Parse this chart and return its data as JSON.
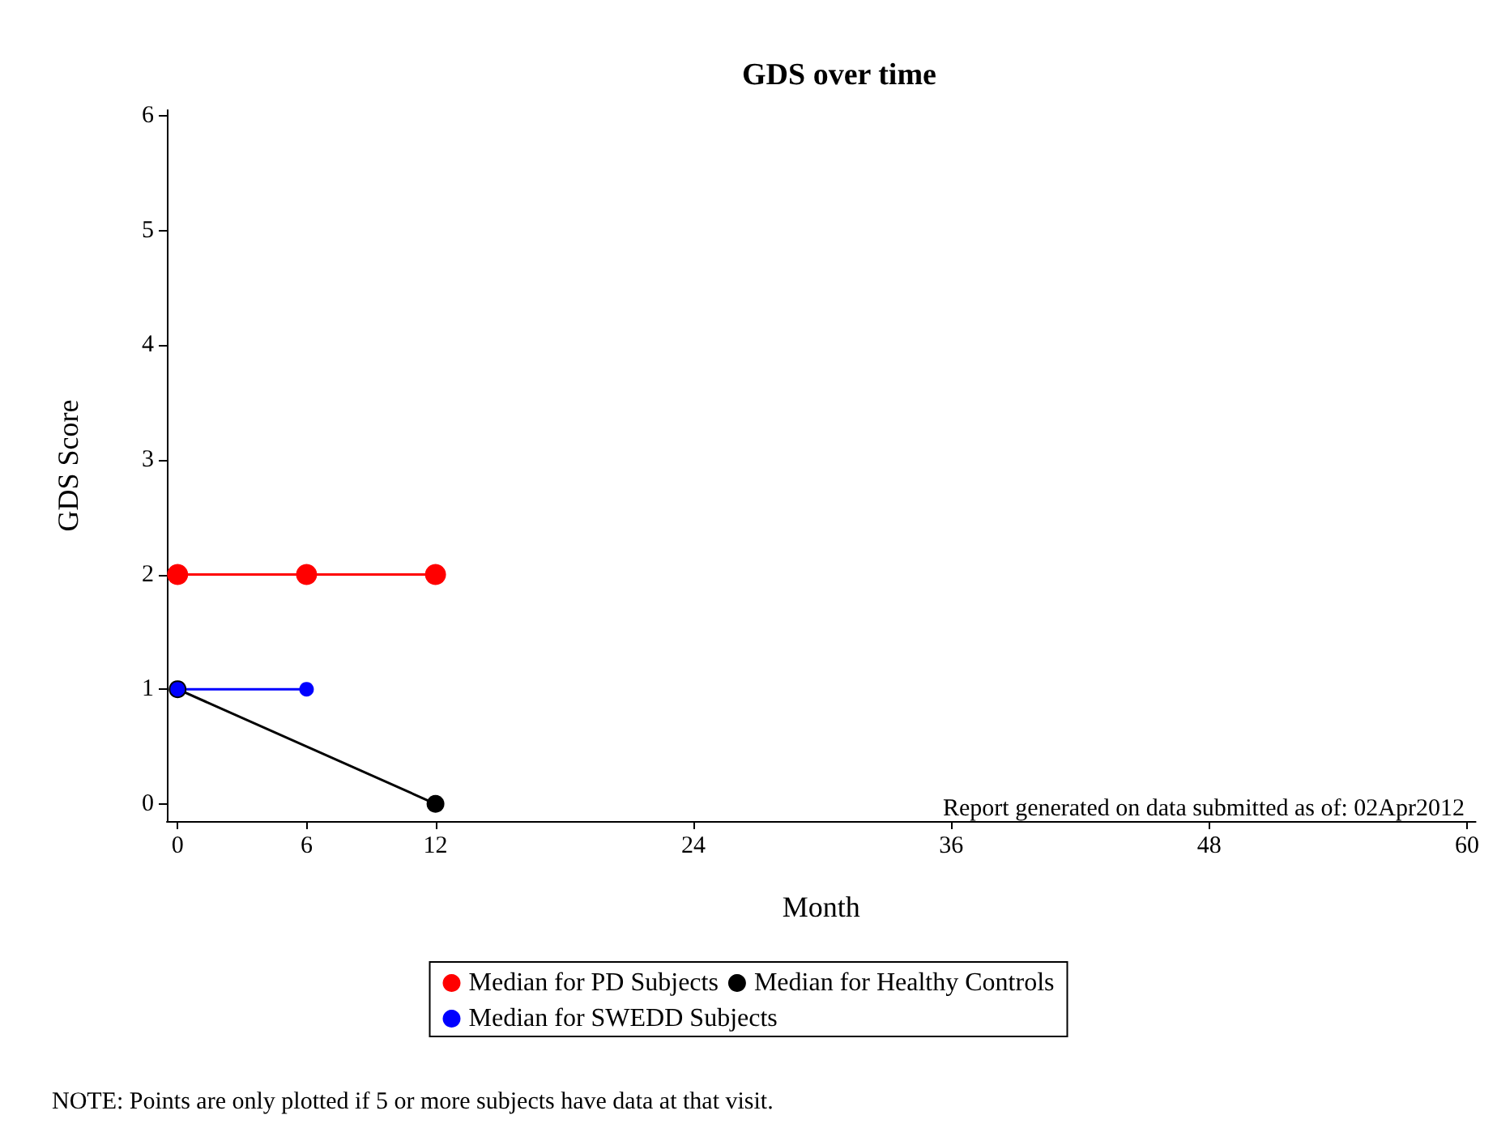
{
  "chart_data": {
    "type": "line",
    "title": "GDS over time",
    "xlabel": "Month",
    "ylabel": "GDS Score",
    "annotations": [
      "Report generated on data submitted as of: 02Apr2012",
      "NOTE: Points are only plotted if 5 or more subjects have data at that visit."
    ],
    "series": [
      {
        "name": "Median for PD Subjects",
        "color": "#ff0000",
        "x": [
          0,
          6,
          12
        ],
        "values": [
          2,
          2,
          2
        ]
      },
      {
        "name": "Median for Healthy Controls",
        "color": "#000000",
        "x": [
          0,
          12
        ],
        "values": [
          1,
          0
        ]
      },
      {
        "name": "Median for SWEDD Subjects",
        "color": "#0000ff",
        "x": [
          0,
          6
        ],
        "values": [
          1,
          1
        ]
      }
    ],
    "xlim": [
      -0.5,
      60.4
    ],
    "xticks": [
      0,
      6,
      12,
      24,
      36,
      48,
      60
    ],
    "ylim": [
      -0.15,
      6.05
    ],
    "yticks": [
      0,
      1,
      2,
      3,
      4,
      5,
      6
    ],
    "grid": false,
    "legend": "bottom",
    "marker": "circle",
    "line_style": "solid"
  }
}
